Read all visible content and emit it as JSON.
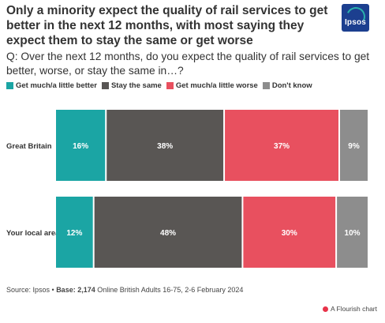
{
  "title": "Only a minority expect the quality of rail services to get better in the next 12 months, with most saying they expect them to stay the same or get worse",
  "subtitle": "Q: Over the next 12 months, do you expect the quality of rail services to get better, worse, or stay the same in…?",
  "logo_text": "Ipsos",
  "footer": {
    "source_prefix": "Source: Ipsos • ",
    "base_label": "Base: 2,174",
    "base_rest": " Online British Adults 16-75, 2-6 February 2024"
  },
  "credit": "A Flourish chart",
  "chart_data": {
    "type": "bar",
    "orientation": "horizontal",
    "stacked": true,
    "categories": [
      "Great Britain",
      "Your local area"
    ],
    "series": [
      {
        "name": "Get much/a little better",
        "color": "#1ba5a4",
        "values": [
          16,
          12
        ]
      },
      {
        "name": "Stay the same",
        "color": "#595654",
        "values": [
          38,
          48
        ]
      },
      {
        "name": "Get much/a little worse",
        "color": "#e8505f",
        "values": [
          37,
          30
        ]
      },
      {
        "name": "Don't know",
        "color": "#8d8d8d",
        "values": [
          9,
          10
        ]
      }
    ],
    "value_suffix": "%",
    "xlim": [
      0,
      100
    ],
    "legend_position": "top-left"
  }
}
